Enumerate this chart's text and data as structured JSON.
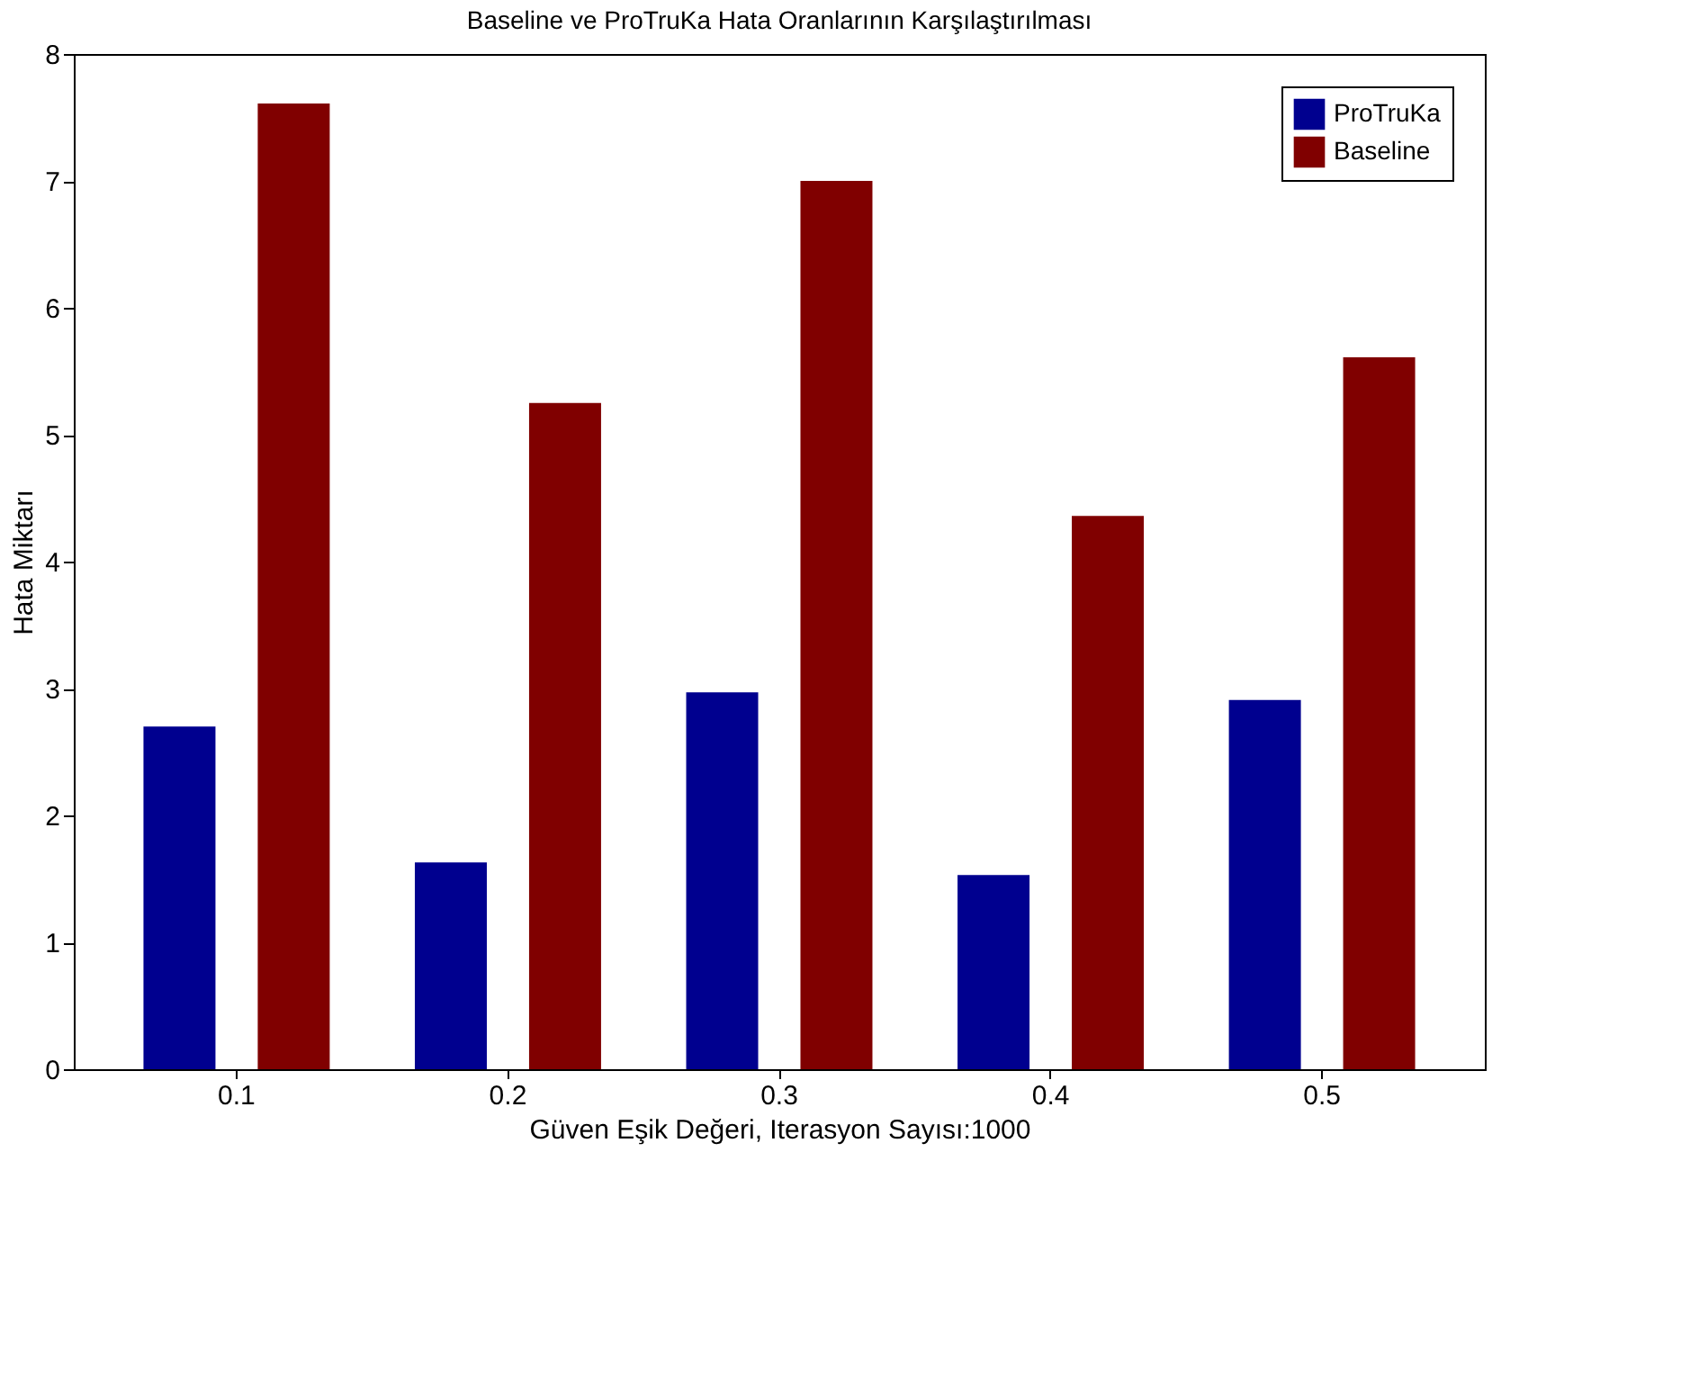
{
  "chart_data": {
    "type": "bar",
    "title": "Baseline ve ProTruKa Hata Oranlarının Karşılaştırılması",
    "xlabel": "Güven Eşik Değeri, Iterasyon Sayısı:1000",
    "ylabel": "Hata Miktarı",
    "categories": [
      "0.1",
      "0.2",
      "0.3",
      "0.4",
      "0.5"
    ],
    "series": [
      {
        "name": "ProTruKa",
        "color": "#00008f",
        "values": [
          2.7,
          1.63,
          2.97,
          1.53,
          2.91
        ]
      },
      {
        "name": "Baseline",
        "color": "#800000",
        "values": [
          7.61,
          5.25,
          7.0,
          4.36,
          5.61
        ]
      }
    ],
    "ylim": [
      0,
      8
    ],
    "yticks": [
      0,
      1,
      2,
      3,
      4,
      5,
      6,
      7,
      8
    ],
    "grid": false,
    "legend": "top right"
  }
}
